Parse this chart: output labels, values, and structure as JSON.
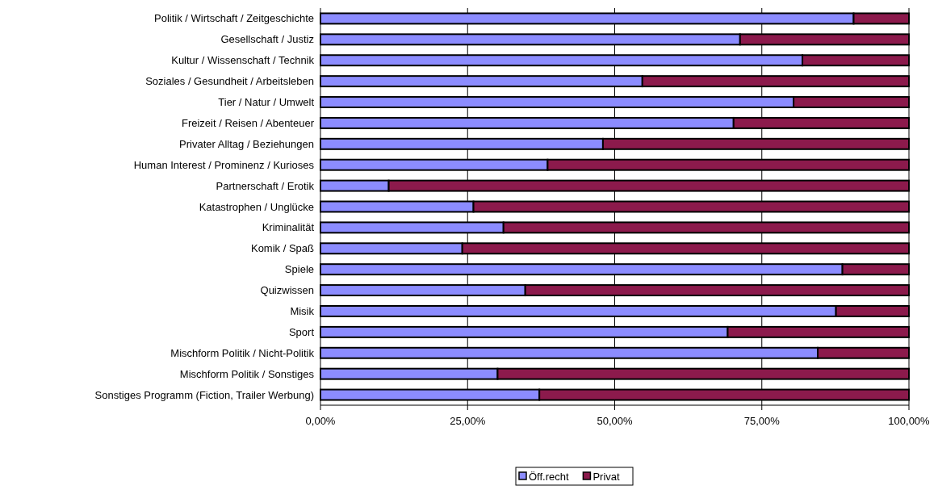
{
  "chart_data": {
    "type": "bar",
    "orientation": "horizontal",
    "stacked": true,
    "categories": [
      "Politik / Wirtschaft / Zeitgeschichte",
      "Gesellschaft / Justiz",
      "Kultur / Wissenschaft / Technik",
      "Soziales / Gesundheit / Arbeitsleben",
      "Tier / Natur / Umwelt",
      "Freizeit / Reisen / Abenteuer",
      "Privater Alltag / Beziehungen",
      "Human Interest / Prominenz / Kurioses",
      "Partnerschaft / Erotik",
      "Katastrophen / Unglücke",
      "Kriminalität",
      "Komik / Spaß",
      "Spiele",
      "Quizwissen",
      "Misik",
      "Sport",
      "Mischform Politik / Nicht-Politik",
      "Mischform Politik / Sonstiges",
      "Sonstiges Programm (Fiction, Trailer Werbung)"
    ],
    "series": [
      {
        "name": "Öff.recht",
        "color": "#8c8cff",
        "values": [
          90.6,
          71.3,
          81.9,
          54.7,
          80.4,
          70.2,
          48.0,
          38.6,
          11.6,
          26.0,
          31.1,
          24.1,
          88.7,
          34.8,
          87.6,
          69.2,
          84.5,
          30.1,
          37.2
        ]
      },
      {
        "name": "Privat",
        "color": "#8c1a4c",
        "values": [
          9.4,
          28.7,
          18.1,
          45.3,
          19.6,
          29.8,
          52.0,
          61.4,
          88.4,
          74.0,
          68.9,
          75.9,
          11.3,
          65.2,
          12.4,
          30.8,
          15.5,
          69.9,
          62.8
        ]
      }
    ],
    "xlim": [
      0,
      100
    ],
    "xticks": [
      {
        "value": 0,
        "label": "0,00%"
      },
      {
        "value": 25,
        "label": "25,00%"
      },
      {
        "value": 50,
        "label": "50,00%"
      },
      {
        "value": 75,
        "label": "75,00%"
      },
      {
        "value": 100,
        "label": "100,00%"
      }
    ],
    "grid": "x",
    "legend": "bottom"
  }
}
